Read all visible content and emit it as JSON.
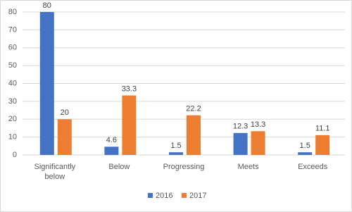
{
  "chart_data": {
    "type": "bar",
    "categories": [
      "Significantly below",
      "Below",
      "Progressing",
      "Meets",
      "Exceeds"
    ],
    "series": [
      {
        "name": "2016",
        "color": "#4472c4",
        "values": [
          80,
          4.6,
          1.5,
          12.3,
          1.5
        ]
      },
      {
        "name": "2017",
        "color": "#ed7d31",
        "values": [
          20,
          33.3,
          22.2,
          13.3,
          11.1
        ]
      }
    ],
    "ylim": [
      0,
      80
    ],
    "yticks": [
      0,
      10,
      20,
      30,
      40,
      50,
      60,
      70,
      80
    ],
    "grid": true,
    "legend": "bottom"
  }
}
